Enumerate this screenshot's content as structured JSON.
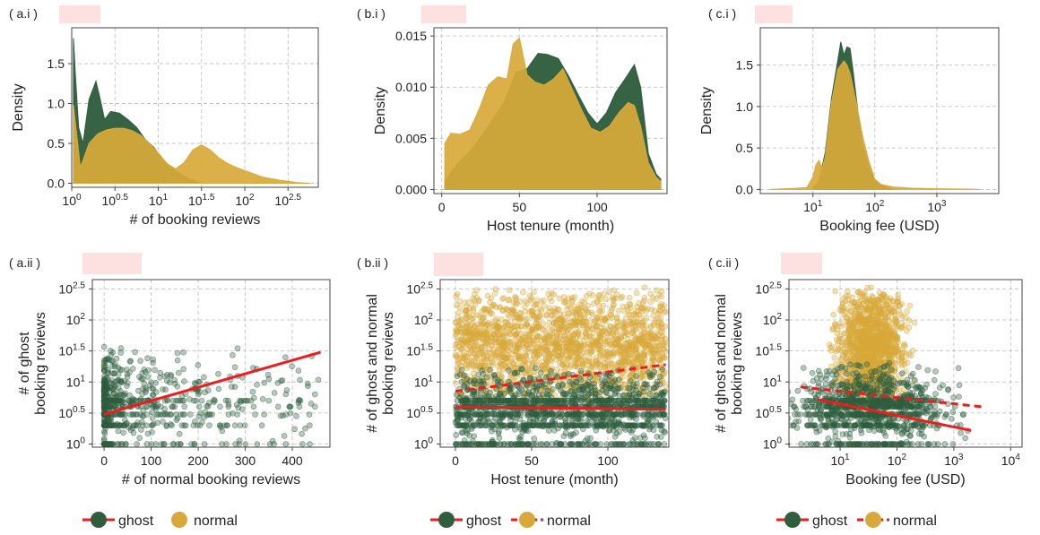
{
  "colors": {
    "ghost": "#2e5e3e",
    "normal": "#d8a93a",
    "trend": "#ee1c1c",
    "tag": "#fde0e0",
    "grid": "#bbbbbb"
  },
  "chart_data": [
    {
      "id": "a_i",
      "type": "area",
      "panel_label": "( a.i )",
      "xlabel": "# of booking reviews",
      "ylabel": "Density",
      "x_scale": "log10",
      "xlim": [
        0,
        2.85
      ],
      "ylim": [
        -0.05,
        1.95
      ],
      "x_ticks": [
        {
          "v": 0,
          "t": "10",
          "e": "0"
        },
        {
          "v": 0.5,
          "t": "10",
          "e": "0.5"
        },
        {
          "v": 1,
          "t": "10",
          "e": "1"
        },
        {
          "v": 1.5,
          "t": "10",
          "e": "1.5"
        },
        {
          "v": 2,
          "t": "10",
          "e": "2"
        },
        {
          "v": 2.5,
          "t": "10",
          "e": "2.5"
        }
      ],
      "y_ticks": [
        {
          "v": 0,
          "t": "0.0"
        },
        {
          "v": 0.5,
          "t": "0.5"
        },
        {
          "v": 1,
          "t": "1.0"
        },
        {
          "v": 1.5,
          "t": "1.5"
        }
      ],
      "series": [
        {
          "key": "ghost",
          "x": [
            0.02,
            0.04,
            0.08,
            0.13,
            0.2,
            0.28,
            0.32,
            0.38,
            0.45,
            0.55,
            0.65,
            0.75,
            0.85,
            0.95,
            1.05,
            1.15,
            1.25,
            1.35,
            1.45,
            1.5
          ],
          "y": [
            1.82,
            1.4,
            0.7,
            0.5,
            1.05,
            1.28,
            1.1,
            0.8,
            0.9,
            0.88,
            0.8,
            0.7,
            0.55,
            0.45,
            0.3,
            0.2,
            0.12,
            0.06,
            0.02,
            0.0
          ]
        },
        {
          "key": "normal",
          "x": [
            0.02,
            0.1,
            0.2,
            0.3,
            0.4,
            0.5,
            0.6,
            0.7,
            0.8,
            0.9,
            1.0,
            1.1,
            1.2,
            1.3,
            1.4,
            1.5,
            1.6,
            1.7,
            1.8,
            1.9,
            2.0,
            2.1,
            2.2,
            2.3,
            2.4,
            2.5,
            2.6,
            2.75
          ],
          "y": [
            0.98,
            0.2,
            0.5,
            0.62,
            0.67,
            0.69,
            0.69,
            0.66,
            0.6,
            0.5,
            0.38,
            0.25,
            0.18,
            0.26,
            0.42,
            0.48,
            0.42,
            0.32,
            0.25,
            0.2,
            0.16,
            0.12,
            0.08,
            0.06,
            0.04,
            0.025,
            0.01,
            0.0
          ]
        }
      ]
    },
    {
      "id": "b_i",
      "type": "area",
      "panel_label": "( b.i )",
      "xlabel": "Host tenure (month)",
      "ylabel": "Density",
      "x_scale": "linear",
      "xlim": [
        -5,
        145
      ],
      "ylim": [
        -0.0004,
        0.0158
      ],
      "x_ticks": [
        {
          "v": 0,
          "t": "0"
        },
        {
          "v": 50,
          "t": "50"
        },
        {
          "v": 100,
          "t": "100"
        }
      ],
      "y_ticks": [
        {
          "v": 0,
          "t": "0.000"
        },
        {
          "v": 0.005,
          "t": "0.005"
        },
        {
          "v": 0.01,
          "t": "0.010"
        },
        {
          "v": 0.015,
          "t": "0.015"
        }
      ],
      "series": [
        {
          "key": "ghost",
          "x": [
            2,
            10,
            20,
            30,
            40,
            48,
            55,
            62,
            68,
            75,
            82,
            88,
            94,
            100,
            106,
            112,
            118,
            124,
            128,
            133,
            138,
            141
          ],
          "y": [
            0.0008,
            0.0025,
            0.004,
            0.0062,
            0.0085,
            0.0115,
            0.0118,
            0.0133,
            0.0132,
            0.0128,
            0.011,
            0.0092,
            0.0075,
            0.0064,
            0.0075,
            0.0095,
            0.0108,
            0.0122,
            0.01,
            0.0035,
            0.0015,
            0.001
          ]
        },
        {
          "key": "normal",
          "x": [
            2,
            6,
            12,
            18,
            24,
            30,
            36,
            42,
            46,
            50,
            55,
            60,
            66,
            72,
            78,
            84,
            90,
            96,
            102,
            108,
            114,
            120,
            124,
            128,
            133,
            138,
            141
          ],
          "y": [
            0.0045,
            0.0055,
            0.0054,
            0.0058,
            0.0078,
            0.0102,
            0.011,
            0.0108,
            0.0142,
            0.0148,
            0.0112,
            0.0105,
            0.0102,
            0.0108,
            0.0118,
            0.0098,
            0.0078,
            0.006,
            0.0056,
            0.0062,
            0.0075,
            0.0085,
            0.0082,
            0.0062,
            0.0026,
            0.0012,
            0.0008
          ]
        }
      ]
    },
    {
      "id": "c_i",
      "type": "area",
      "panel_label": "( c.i )",
      "xlabel": "Booking fee (USD)",
      "ylabel": "Density",
      "x_scale": "log10",
      "xlim": [
        0.15,
        4.0
      ],
      "ylim": [
        -0.05,
        1.95
      ],
      "x_ticks": [
        {
          "v": 1,
          "t": "10",
          "e": "1"
        },
        {
          "v": 2,
          "t": "10",
          "e": "2"
        },
        {
          "v": 3,
          "t": "10",
          "e": "3"
        }
      ],
      "y_ticks": [
        {
          "v": 0,
          "t": "0.0"
        },
        {
          "v": 0.5,
          "t": "0.5"
        },
        {
          "v": 1,
          "t": "1.0"
        },
        {
          "v": 1.5,
          "t": "1.5"
        }
      ],
      "series": [
        {
          "key": "ghost",
          "x": [
            1.0,
            1.1,
            1.2,
            1.3,
            1.4,
            1.45,
            1.5,
            1.55,
            1.6,
            1.65,
            1.7,
            1.75,
            1.8,
            1.9,
            2.0,
            2.1,
            2.2,
            2.3
          ],
          "y": [
            0.02,
            0.1,
            0.45,
            1.1,
            1.55,
            1.78,
            1.62,
            1.72,
            1.7,
            1.42,
            1.1,
            0.8,
            0.55,
            0.28,
            0.12,
            0.05,
            0.02,
            0.0
          ]
        },
        {
          "key": "normal",
          "x": [
            0.3,
            0.9,
            1.0,
            1.05,
            1.1,
            1.15,
            1.2,
            1.3,
            1.4,
            1.5,
            1.55,
            1.6,
            1.7,
            1.8,
            1.9,
            2.0,
            2.1,
            2.3,
            2.6,
            3.0,
            3.5,
            3.7
          ],
          "y": [
            0.0,
            0.02,
            0.15,
            0.3,
            0.35,
            0.25,
            0.4,
            1.05,
            1.45,
            1.55,
            1.5,
            1.4,
            1.05,
            0.65,
            0.35,
            0.12,
            0.06,
            0.03,
            0.015,
            0.008,
            0.004,
            0.0
          ]
        }
      ]
    },
    {
      "id": "a_ii",
      "type": "scatter",
      "panel_label": "( a.ii )",
      "xlabel": "# of normal booking reviews",
      "ylabel": [
        "# of ghost",
        "booking reviews"
      ],
      "x_scale": "linear",
      "y_scale": "log10",
      "xlim": [
        -25,
        480
      ],
      "ylim": [
        -0.05,
        2.65
      ],
      "x_ticks": [
        {
          "v": 0,
          "t": "0"
        },
        {
          "v": 100,
          "t": "100"
        },
        {
          "v": 200,
          "t": "200"
        },
        {
          "v": 300,
          "t": "300"
        },
        {
          "v": 400,
          "t": "400"
        }
      ],
      "y_ticks": [
        {
          "v": 0,
          "t": "10",
          "e": "0"
        },
        {
          "v": 0.5,
          "t": "10",
          "e": "0.5"
        },
        {
          "v": 1,
          "t": "10",
          "e": "1"
        },
        {
          "v": 1.5,
          "t": "10",
          "e": "1.5"
        },
        {
          "v": 2,
          "t": "10",
          "e": "2"
        },
        {
          "v": 2.5,
          "t": "10",
          "e": "2.5"
        }
      ],
      "scatter_series": [
        {
          "key": "ghost",
          "x_range": [
            0,
            460
          ],
          "x_skew": 3.2,
          "y_range": [
            0,
            1.6
          ],
          "count": 700,
          "band_rows": [
            0,
            0.301,
            0.477,
            0.602,
            0.699
          ]
        }
      ],
      "trend": [
        {
          "key": "ghost",
          "x": [
            0,
            460
          ],
          "y": [
            0.48,
            1.48
          ],
          "dash": false
        }
      ]
    },
    {
      "id": "b_ii",
      "type": "scatter",
      "panel_label": "( b.ii )",
      "xlabel": "Host tenure (month)",
      "ylabel": [
        "# of ghost and normal",
        "booking reviews"
      ],
      "x_scale": "linear",
      "y_scale": "log10",
      "xlim": [
        -10,
        140
      ],
      "ylim": [
        -0.05,
        2.65
      ],
      "x_ticks": [
        {
          "v": 0,
          "t": "0"
        },
        {
          "v": 50,
          "t": "50"
        },
        {
          "v": 100,
          "t": "100"
        }
      ],
      "y_ticks": [
        {
          "v": 0,
          "t": "10",
          "e": "0"
        },
        {
          "v": 0.5,
          "t": "10",
          "e": "0.5"
        },
        {
          "v": 1,
          "t": "10",
          "e": "1"
        },
        {
          "v": 1.5,
          "t": "10",
          "e": "1.5"
        },
        {
          "v": 2,
          "t": "10",
          "e": "2"
        },
        {
          "v": 2.5,
          "t": "10",
          "e": "2.5"
        }
      ],
      "scatter_series": [
        {
          "key": "normal",
          "x_range": [
            0,
            138
          ],
          "x_skew": 1.0,
          "y_range": [
            0.6,
            2.55
          ],
          "count": 1800
        },
        {
          "key": "ghost",
          "x_range": [
            0,
            138
          ],
          "x_skew": 1.0,
          "y_range": [
            0,
            1.25
          ],
          "count": 1500,
          "band_rows": [
            0,
            0.301,
            0.477,
            0.602,
            0.699
          ]
        }
      ],
      "trend": [
        {
          "key": "normal",
          "x": [
            0,
            138
          ],
          "y": [
            0.85,
            1.28
          ],
          "dash": true
        },
        {
          "key": "ghost",
          "x": [
            0,
            138
          ],
          "y": [
            0.6,
            0.56
          ],
          "dash": false
        }
      ]
    },
    {
      "id": "c_ii",
      "type": "scatter",
      "panel_label": "( c.ii )",
      "xlabel": "Booking fee (USD)",
      "ylabel": [
        "# of ghost and normal",
        "booking reviews"
      ],
      "x_scale": "log10",
      "y_scale": "log10",
      "xlim": [
        0.1,
        4.2
      ],
      "ylim": [
        -0.05,
        2.65
      ],
      "x_ticks": [
        {
          "v": 1,
          "t": "10",
          "e": "1"
        },
        {
          "v": 2,
          "t": "10",
          "e": "2"
        },
        {
          "v": 3,
          "t": "10",
          "e": "3"
        },
        {
          "v": 4,
          "t": "10",
          "e": "4"
        }
      ],
      "y_ticks": [
        {
          "v": 0,
          "t": "10",
          "e": "0"
        },
        {
          "v": 0.5,
          "t": "10",
          "e": "0.5"
        },
        {
          "v": 1,
          "t": "10",
          "e": "1"
        },
        {
          "v": 1.5,
          "t": "10",
          "e": "1.5"
        },
        {
          "v": 2,
          "t": "10",
          "e": "2"
        },
        {
          "v": 2.5,
          "t": "10",
          "e": "2.5"
        }
      ],
      "scatter_series": [
        {
          "key": "normal",
          "x_range": [
            1.0,
            2.3
          ],
          "x_skew": 1.0,
          "x_center": 1.55,
          "y_range": [
            0.5,
            2.55
          ],
          "count": 1300
        },
        {
          "key": "ghost",
          "x_range": [
            0.9,
            3.8
          ],
          "x_skew": 1.0,
          "x_center": 1.55,
          "y_range": [
            0,
            1.35
          ],
          "count": 1100,
          "band_rows": [
            0,
            0.301,
            0.477,
            0.602,
            0.699
          ]
        }
      ],
      "trend": [
        {
          "key": "normal",
          "x": [
            0.3,
            3.5
          ],
          "y": [
            0.92,
            0.6
          ],
          "dash": true
        },
        {
          "key": "ghost",
          "x": [
            0.6,
            3.3
          ],
          "y": [
            0.72,
            0.22
          ],
          "dash": false
        }
      ]
    }
  ],
  "legends": [
    {
      "entries": [
        {
          "key": "ghost",
          "label": "ghost",
          "line": true,
          "dash": false
        },
        {
          "key": "normal",
          "label": "normal",
          "line": false,
          "dash": false
        }
      ]
    },
    {
      "entries": [
        {
          "key": "ghost",
          "label": "ghost",
          "line": true,
          "dash": false
        },
        {
          "key": "normal",
          "label": "normal",
          "line": true,
          "dash": true
        }
      ]
    },
    {
      "entries": [
        {
          "key": "ghost",
          "label": "ghost",
          "line": true,
          "dash": false
        },
        {
          "key": "normal",
          "label": "normal",
          "line": true,
          "dash": true
        }
      ]
    }
  ]
}
